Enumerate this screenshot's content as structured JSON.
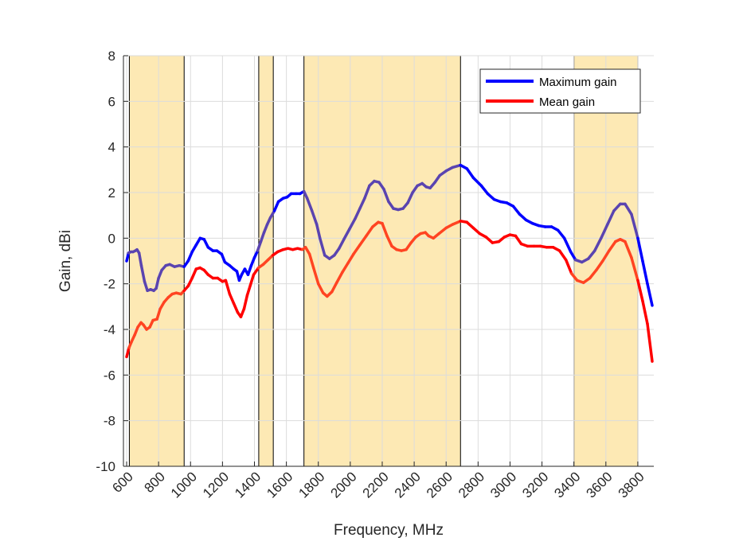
{
  "chart_data": {
    "type": "line",
    "title": "",
    "xlabel": "Frequency, MHz",
    "ylabel": "Gain, dBi",
    "xlim": [
      580,
      3900
    ],
    "ylim": [
      -10,
      8
    ],
    "grid": true,
    "x_ticks": [
      600,
      800,
      1000,
      1200,
      1400,
      1600,
      1800,
      2000,
      2200,
      2400,
      2600,
      2800,
      3000,
      3200,
      3400,
      3600,
      3800
    ],
    "x_tick_labels": [
      "600",
      "800",
      "1000",
      "1200",
      "1400",
      "1600",
      "1800",
      "2000",
      "2200",
      "2400",
      "2600",
      "2800",
      "3000",
      "3200",
      "3400",
      "3600",
      "3800"
    ],
    "y_ticks": [
      -10,
      -8,
      -6,
      -4,
      -2,
      0,
      2,
      4,
      6,
      8
    ],
    "y_tick_labels": [
      "-10",
      "-8",
      "-6",
      "-4",
      "-2",
      "0",
      "2",
      "4",
      "6",
      "8"
    ],
    "legend_position": "top-right",
    "shaded_bands": [
      {
        "from": 617,
        "to": 960
      },
      {
        "from": 1427,
        "to": 1518
      },
      {
        "from": 1710,
        "to": 2690
      },
      {
        "from": 3400,
        "to": 3800
      }
    ],
    "band_color": "#fde9b4",
    "series": [
      {
        "name": "Maximum gain",
        "color": "#0000ff",
        "overlap_color": "#5a44b0",
        "points": [
          [
            600,
            -1.0
          ],
          [
            612,
            -0.65
          ],
          [
            625,
            -0.6
          ],
          [
            640,
            -0.6
          ],
          [
            655,
            -0.55
          ],
          [
            665,
            -0.5
          ],
          [
            678,
            -0.65
          ],
          [
            692,
            -1.2
          ],
          [
            712,
            -1.9
          ],
          [
            730,
            -2.3
          ],
          [
            750,
            -2.25
          ],
          [
            770,
            -2.3
          ],
          [
            785,
            -2.2
          ],
          [
            800,
            -1.75
          ],
          [
            820,
            -1.4
          ],
          [
            845,
            -1.2
          ],
          [
            870,
            -1.15
          ],
          [
            900,
            -1.25
          ],
          [
            930,
            -1.2
          ],
          [
            960,
            -1.25
          ],
          [
            985,
            -1.0
          ],
          [
            1010,
            -0.6
          ],
          [
            1035,
            -0.3
          ],
          [
            1060,
            0.0
          ],
          [
            1085,
            -0.05
          ],
          [
            1110,
            -0.4
          ],
          [
            1140,
            -0.55
          ],
          [
            1165,
            -0.55
          ],
          [
            1195,
            -0.7
          ],
          [
            1215,
            -1.05
          ],
          [
            1245,
            -1.2
          ],
          [
            1270,
            -1.35
          ],
          [
            1290,
            -1.45
          ],
          [
            1305,
            -1.85
          ],
          [
            1320,
            -1.6
          ],
          [
            1340,
            -1.35
          ],
          [
            1360,
            -1.6
          ],
          [
            1380,
            -1.2
          ],
          [
            1400,
            -0.85
          ],
          [
            1420,
            -0.55
          ],
          [
            1440,
            -0.15
          ],
          [
            1460,
            0.25
          ],
          [
            1480,
            0.6
          ],
          [
            1500,
            0.9
          ],
          [
            1525,
            1.2
          ],
          [
            1550,
            1.6
          ],
          [
            1580,
            1.75
          ],
          [
            1605,
            1.8
          ],
          [
            1630,
            1.95
          ],
          [
            1660,
            1.95
          ],
          [
            1685,
            1.95
          ],
          [
            1710,
            2.05
          ],
          [
            1730,
            1.75
          ],
          [
            1760,
            1.2
          ],
          [
            1790,
            0.6
          ],
          [
            1810,
            0.0
          ],
          [
            1840,
            -0.75
          ],
          [
            1870,
            -0.9
          ],
          [
            1900,
            -0.75
          ],
          [
            1930,
            -0.45
          ],
          [
            1960,
            -0.05
          ],
          [
            1995,
            0.4
          ],
          [
            2030,
            0.85
          ],
          [
            2060,
            1.3
          ],
          [
            2090,
            1.75
          ],
          [
            2120,
            2.3
          ],
          [
            2150,
            2.5
          ],
          [
            2180,
            2.45
          ],
          [
            2210,
            2.15
          ],
          [
            2240,
            1.6
          ],
          [
            2270,
            1.3
          ],
          [
            2300,
            1.25
          ],
          [
            2330,
            1.3
          ],
          [
            2360,
            1.55
          ],
          [
            2390,
            2.0
          ],
          [
            2420,
            2.3
          ],
          [
            2450,
            2.4
          ],
          [
            2475,
            2.25
          ],
          [
            2500,
            2.2
          ],
          [
            2530,
            2.45
          ],
          [
            2560,
            2.75
          ],
          [
            2600,
            2.95
          ],
          [
            2640,
            3.1
          ],
          [
            2690,
            3.2
          ],
          [
            2730,
            3.05
          ],
          [
            2770,
            2.65
          ],
          [
            2820,
            2.3
          ],
          [
            2860,
            1.95
          ],
          [
            2900,
            1.7
          ],
          [
            2940,
            1.6
          ],
          [
            2980,
            1.55
          ],
          [
            3020,
            1.4
          ],
          [
            3060,
            1.05
          ],
          [
            3100,
            0.8
          ],
          [
            3140,
            0.65
          ],
          [
            3180,
            0.55
          ],
          [
            3220,
            0.5
          ],
          [
            3260,
            0.5
          ],
          [
            3300,
            0.35
          ],
          [
            3340,
            0.0
          ],
          [
            3380,
            -0.6
          ],
          [
            3410,
            -0.95
          ],
          [
            3450,
            -1.05
          ],
          [
            3490,
            -0.9
          ],
          [
            3530,
            -0.55
          ],
          [
            3570,
            0.0
          ],
          [
            3610,
            0.6
          ],
          [
            3650,
            1.2
          ],
          [
            3690,
            1.5
          ],
          [
            3720,
            1.5
          ],
          [
            3760,
            1.05
          ],
          [
            3800,
            0.0
          ],
          [
            3830,
            -1.0
          ],
          [
            3860,
            -2.0
          ],
          [
            3890,
            -2.95
          ]
        ]
      },
      {
        "name": "Mean gain",
        "color": "#ff0000",
        "overlap_color": "#ff4422",
        "points": [
          [
            600,
            -5.2
          ],
          [
            615,
            -4.8
          ],
          [
            630,
            -4.55
          ],
          [
            650,
            -4.25
          ],
          [
            670,
            -3.9
          ],
          [
            690,
            -3.7
          ],
          [
            705,
            -3.8
          ],
          [
            725,
            -4.0
          ],
          [
            745,
            -3.9
          ],
          [
            765,
            -3.6
          ],
          [
            790,
            -3.55
          ],
          [
            810,
            -3.1
          ],
          [
            835,
            -2.8
          ],
          [
            860,
            -2.6
          ],
          [
            885,
            -2.45
          ],
          [
            910,
            -2.4
          ],
          [
            940,
            -2.45
          ],
          [
            960,
            -2.3
          ],
          [
            985,
            -2.1
          ],
          [
            1010,
            -1.75
          ],
          [
            1035,
            -1.35
          ],
          [
            1060,
            -1.3
          ],
          [
            1085,
            -1.4
          ],
          [
            1110,
            -1.6
          ],
          [
            1140,
            -1.75
          ],
          [
            1170,
            -1.75
          ],
          [
            1200,
            -1.9
          ],
          [
            1220,
            -1.85
          ],
          [
            1245,
            -2.45
          ],
          [
            1270,
            -2.85
          ],
          [
            1295,
            -3.25
          ],
          [
            1315,
            -3.45
          ],
          [
            1335,
            -3.1
          ],
          [
            1355,
            -2.5
          ],
          [
            1375,
            -2.05
          ],
          [
            1395,
            -1.6
          ],
          [
            1425,
            -1.3
          ],
          [
            1455,
            -1.15
          ],
          [
            1485,
            -0.95
          ],
          [
            1515,
            -0.75
          ],
          [
            1545,
            -0.6
          ],
          [
            1580,
            -0.5
          ],
          [
            1610,
            -0.45
          ],
          [
            1640,
            -0.5
          ],
          [
            1670,
            -0.45
          ],
          [
            1700,
            -0.5
          ],
          [
            1720,
            -0.4
          ],
          [
            1745,
            -0.7
          ],
          [
            1770,
            -1.3
          ],
          [
            1800,
            -2.0
          ],
          [
            1830,
            -2.4
          ],
          [
            1855,
            -2.55
          ],
          [
            1885,
            -2.35
          ],
          [
            1915,
            -1.95
          ],
          [
            1950,
            -1.5
          ],
          [
            1985,
            -1.1
          ],
          [
            2020,
            -0.7
          ],
          [
            2060,
            -0.3
          ],
          [
            2100,
            0.1
          ],
          [
            2140,
            0.5
          ],
          [
            2175,
            0.7
          ],
          [
            2200,
            0.65
          ],
          [
            2230,
            0.1
          ],
          [
            2260,
            -0.35
          ],
          [
            2290,
            -0.5
          ],
          [
            2320,
            -0.55
          ],
          [
            2350,
            -0.5
          ],
          [
            2380,
            -0.2
          ],
          [
            2410,
            0.05
          ],
          [
            2440,
            0.2
          ],
          [
            2470,
            0.25
          ],
          [
            2490,
            0.1
          ],
          [
            2520,
            0.0
          ],
          [
            2555,
            0.2
          ],
          [
            2600,
            0.45
          ],
          [
            2640,
            0.6
          ],
          [
            2690,
            0.75
          ],
          [
            2730,
            0.7
          ],
          [
            2770,
            0.45
          ],
          [
            2810,
            0.2
          ],
          [
            2850,
            0.05
          ],
          [
            2890,
            -0.2
          ],
          [
            2930,
            -0.15
          ],
          [
            2965,
            0.05
          ],
          [
            3000,
            0.15
          ],
          [
            3035,
            0.1
          ],
          [
            3070,
            -0.25
          ],
          [
            3110,
            -0.35
          ],
          [
            3150,
            -0.35
          ],
          [
            3190,
            -0.35
          ],
          [
            3230,
            -0.4
          ],
          [
            3270,
            -0.4
          ],
          [
            3310,
            -0.55
          ],
          [
            3350,
            -0.95
          ],
          [
            3385,
            -1.55
          ],
          [
            3420,
            -1.85
          ],
          [
            3460,
            -1.95
          ],
          [
            3500,
            -1.75
          ],
          [
            3540,
            -1.4
          ],
          [
            3580,
            -1.0
          ],
          [
            3620,
            -0.55
          ],
          [
            3660,
            -0.15
          ],
          [
            3690,
            -0.05
          ],
          [
            3720,
            -0.15
          ],
          [
            3760,
            -0.85
          ],
          [
            3800,
            -1.85
          ],
          [
            3830,
            -2.75
          ],
          [
            3860,
            -3.75
          ],
          [
            3890,
            -5.4
          ]
        ]
      }
    ]
  }
}
